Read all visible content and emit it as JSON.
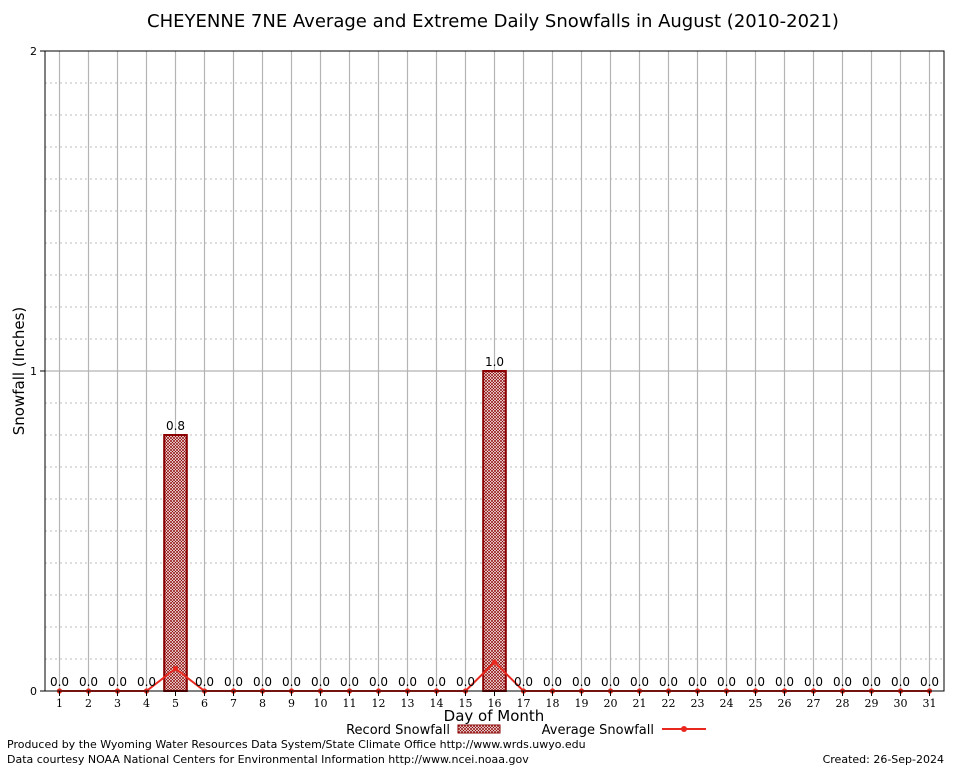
{
  "chart_data": {
    "type": "bar",
    "title": "CHEYENNE 7NE Average and Extreme Daily Snowfalls in August (2010-2021)",
    "xlabel": "Day of Month",
    "ylabel": "Snowfall (Inches)",
    "ylim": [
      0,
      2
    ],
    "yticks": [
      "0",
      "1",
      "2"
    ],
    "grid": true,
    "categories": [
      "1",
      "2",
      "3",
      "4",
      "5",
      "6",
      "7",
      "8",
      "9",
      "10",
      "11",
      "12",
      "13",
      "14",
      "15",
      "16",
      "17",
      "18",
      "19",
      "20",
      "21",
      "22",
      "23",
      "24",
      "25",
      "26",
      "27",
      "28",
      "29",
      "30",
      "31"
    ],
    "series": [
      {
        "name": "Record Snowfall",
        "kind": "bar",
        "color": "#8b0000",
        "values": [
          0,
          0,
          0,
          0,
          0.8,
          0,
          0,
          0,
          0,
          0,
          0,
          0,
          0,
          0,
          0,
          1.0,
          0,
          0,
          0,
          0,
          0,
          0,
          0,
          0,
          0,
          0,
          0,
          0,
          0,
          0,
          0
        ],
        "labels": [
          "0.0",
          "0.0",
          "0.0",
          "0.0",
          "0.8",
          "0.0",
          "0.0",
          "0.0",
          "0.0",
          "0.0",
          "0.0",
          "0.0",
          "0.0",
          "0.0",
          "0.0",
          "1.0",
          "0.0",
          "0.0",
          "0.0",
          "0.0",
          "0.0",
          "0.0",
          "0.0",
          "0.0",
          "0.0",
          "0.0",
          "0.0",
          "0.0",
          "0.0",
          "0.0",
          "0.0"
        ]
      },
      {
        "name": "Average Snowfall",
        "kind": "line",
        "color": "#e8281e",
        "values": [
          0,
          0,
          0,
          0,
          0.07,
          0,
          0,
          0,
          0,
          0,
          0,
          0,
          0,
          0,
          0,
          0.09,
          0,
          0,
          0,
          0,
          0,
          0,
          0,
          0,
          0,
          0,
          0,
          0,
          0,
          0,
          0
        ]
      }
    ],
    "legend_position": "bottom"
  },
  "footer": {
    "produced_by": "Produced by the Wyoming Water Resources Data System/State Climate Office http://www.wrds.uwyo.edu",
    "courtesy": "Data courtesy NOAA National Centers for Environmental Information http://www.ncei.noaa.gov",
    "created": "Created:  26-Sep-2024"
  }
}
